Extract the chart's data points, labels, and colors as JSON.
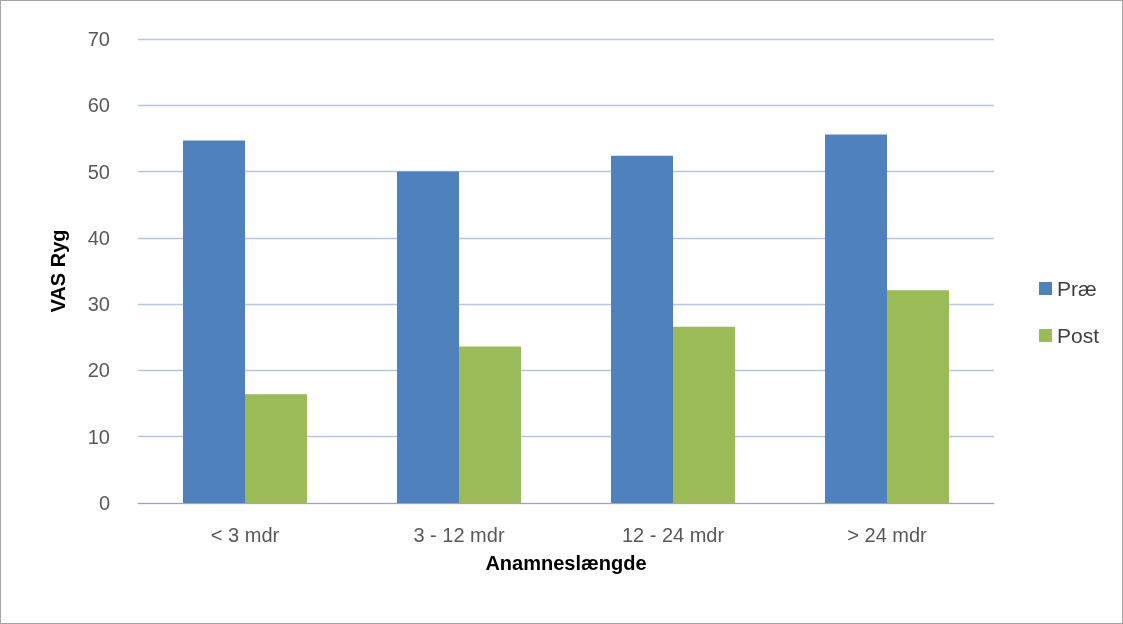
{
  "chart_data": {
    "type": "bar",
    "xlabel": "Anamneslængde",
    "ylabel": "VAS Ryg",
    "categories": [
      "< 3 mdr",
      "3 - 12 mdr",
      "12 - 24 mdr",
      "> 24 mdr"
    ],
    "series": [
      {
        "name": "Præ",
        "color": "#4f81bd",
        "values": [
          54.7,
          50.0,
          52.4,
          55.6
        ]
      },
      {
        "name": "Post",
        "color": "#9bbb59",
        "values": [
          16.4,
          23.6,
          26.6,
          32.1
        ]
      }
    ],
    "ylim": [
      0,
      70
    ],
    "yticks": [
      0,
      10,
      20,
      30,
      40,
      50,
      60,
      70
    ],
    "grid": "y",
    "legend": "right"
  }
}
